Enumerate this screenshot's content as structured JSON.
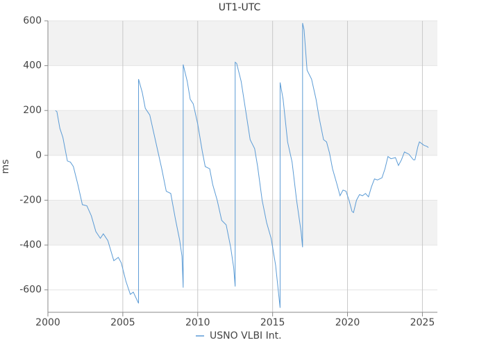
{
  "chart_data": {
    "type": "line",
    "title": "UT1-UTC",
    "y_label": "ms",
    "x": [
      2000.5,
      2000.6,
      2000.8,
      2001.0,
      2001.3,
      2001.5,
      2001.7,
      2002.0,
      2002.3,
      2002.6,
      2002.9,
      2003.2,
      2003.5,
      2003.7,
      2004.0,
      2004.4,
      2004.7,
      2004.9,
      2005.2,
      2005.5,
      2005.7,
      2006.05,
      2006.05,
      2006.3,
      2006.5,
      2006.8,
      2007.0,
      2007.3,
      2007.6,
      2007.9,
      2008.2,
      2008.5,
      2008.8,
      2008.95,
      2009.03,
      2009.03,
      2009.3,
      2009.5,
      2009.7,
      2010.0,
      2010.3,
      2010.5,
      2010.8,
      2011.0,
      2011.3,
      2011.6,
      2011.9,
      2012.2,
      2012.4,
      2012.5,
      2012.5,
      2012.6,
      2012.9,
      2013.2,
      2013.5,
      2013.8,
      2014.0,
      2014.3,
      2014.6,
      2014.9,
      2015.2,
      2015.5,
      2015.5,
      2015.7,
      2016.0,
      2016.3,
      2016.6,
      2016.9,
      2017.0,
      2017.0,
      2017.1,
      2017.3,
      2017.6,
      2017.9,
      2018.1,
      2018.4,
      2018.6,
      2018.8,
      2019.0,
      2019.3,
      2019.5,
      2019.7,
      2019.9,
      2020.1,
      2020.3,
      2020.4,
      2020.6,
      2020.8,
      2021.0,
      2021.2,
      2021.4,
      2021.6,
      2021.8,
      2022.0,
      2022.3,
      2022.5,
      2022.7,
      2022.9,
      2023.2,
      2023.4,
      2023.6,
      2023.8,
      2024.1,
      2024.4,
      2024.5,
      2024.7,
      2024.8,
      2025.1,
      2025.3,
      2025.4
    ],
    "series": [
      {
        "name": "USNO VLBI Int.",
        "color": "#5b9bd5",
        "values": [
          200,
          195,
          120,
          80,
          -25,
          -30,
          -50,
          -130,
          -220,
          -225,
          -270,
          -340,
          -370,
          -350,
          -380,
          -470,
          -455,
          -480,
          -560,
          -620,
          -610,
          -660,
          340,
          280,
          210,
          180,
          120,
          30,
          -60,
          -160,
          -170,
          -280,
          -380,
          -450,
          -590,
          405,
          330,
          250,
          230,
          140,
          20,
          -50,
          -60,
          -130,
          -200,
          -290,
          -310,
          -410,
          -500,
          -585,
          415,
          410,
          330,
          200,
          70,
          30,
          -50,
          -200,
          -300,
          -370,
          -490,
          -680,
          325,
          250,
          60,
          -30,
          -200,
          -340,
          -410,
          590,
          560,
          380,
          340,
          250,
          170,
          70,
          60,
          10,
          -60,
          -130,
          -180,
          -155,
          -160,
          -200,
          -250,
          -255,
          -200,
          -175,
          -180,
          -170,
          -185,
          -140,
          -105,
          -110,
          -100,
          -60,
          -5,
          -15,
          -10,
          -45,
          -20,
          15,
          5,
          -20,
          -20,
          40,
          60,
          45,
          40,
          35
        ]
      }
    ],
    "xlim": [
      2000,
      2026
    ],
    "xticks": [
      2000,
      2005,
      2010,
      2015,
      2020,
      2025
    ],
    "ylim": [
      -700,
      600
    ],
    "yticks": [
      -600,
      -400,
      -200,
      0,
      200,
      400,
      600
    ],
    "grid": true,
    "legend": "bottom"
  }
}
